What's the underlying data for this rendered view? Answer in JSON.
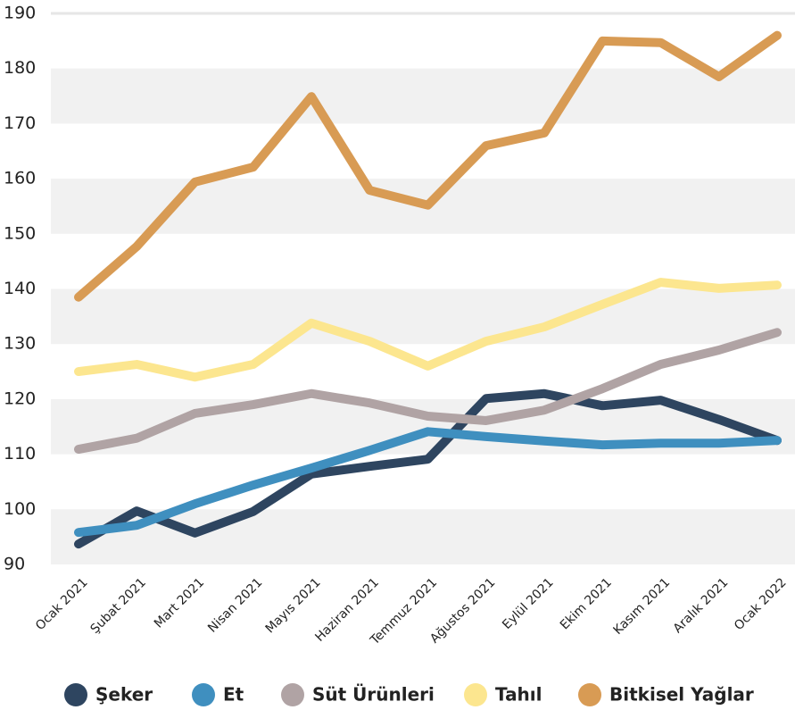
{
  "chart_data": {
    "type": "line",
    "categories": [
      "Ocak 2021",
      "Şubat 2021",
      "Mart 2021",
      "Nisan 2021",
      "Mayıs 2021",
      "Haziran 2021",
      "Temmuz 2021",
      "Ağustos 2021",
      "Eylül 2021",
      "Ekim 2021",
      "Kasım 2021",
      "Aralık 2021",
      "Ocak 2022"
    ],
    "series": [
      {
        "name": "Şeker",
        "color": "#2e4560",
        "values": [
          93.7,
          99.7,
          95.7,
          99.6,
          106.4,
          107.8,
          109.1,
          120.1,
          121.0,
          118.8,
          119.8,
          116.3,
          112.5
        ]
      },
      {
        "name": "Et",
        "color": "#3f8fbf",
        "values": [
          95.8,
          97.1,
          101.0,
          104.4,
          107.5,
          110.7,
          114.1,
          113.2,
          112.4,
          111.7,
          112.0,
          112.0,
          112.5
        ]
      },
      {
        "name": "Süt Ürünleri",
        "color": "#b0a3a4",
        "values": [
          110.9,
          112.9,
          117.4,
          119.0,
          121.0,
          119.3,
          116.9,
          116.1,
          118.0,
          121.9,
          126.3,
          128.9,
          132.1
        ]
      },
      {
        "name": "Tahıl",
        "color": "#fce68f",
        "values": [
          125.0,
          126.3,
          124.0,
          126.3,
          133.8,
          130.5,
          126.0,
          130.5,
          133.1,
          137.2,
          141.2,
          140.1,
          140.7
        ]
      },
      {
        "name": "Bitkisel Yağlar",
        "color": "#d89b54",
        "values": [
          138.5,
          147.7,
          159.4,
          162.1,
          174.9,
          157.9,
          155.2,
          166.0,
          168.3,
          185.0,
          184.7,
          178.5,
          186.0
        ]
      }
    ],
    "ylim": [
      90,
      190
    ],
    "yticks": [
      90,
      100,
      110,
      120,
      130,
      140,
      150,
      160,
      170,
      180,
      190
    ],
    "grid": true,
    "legend": "bottom"
  }
}
